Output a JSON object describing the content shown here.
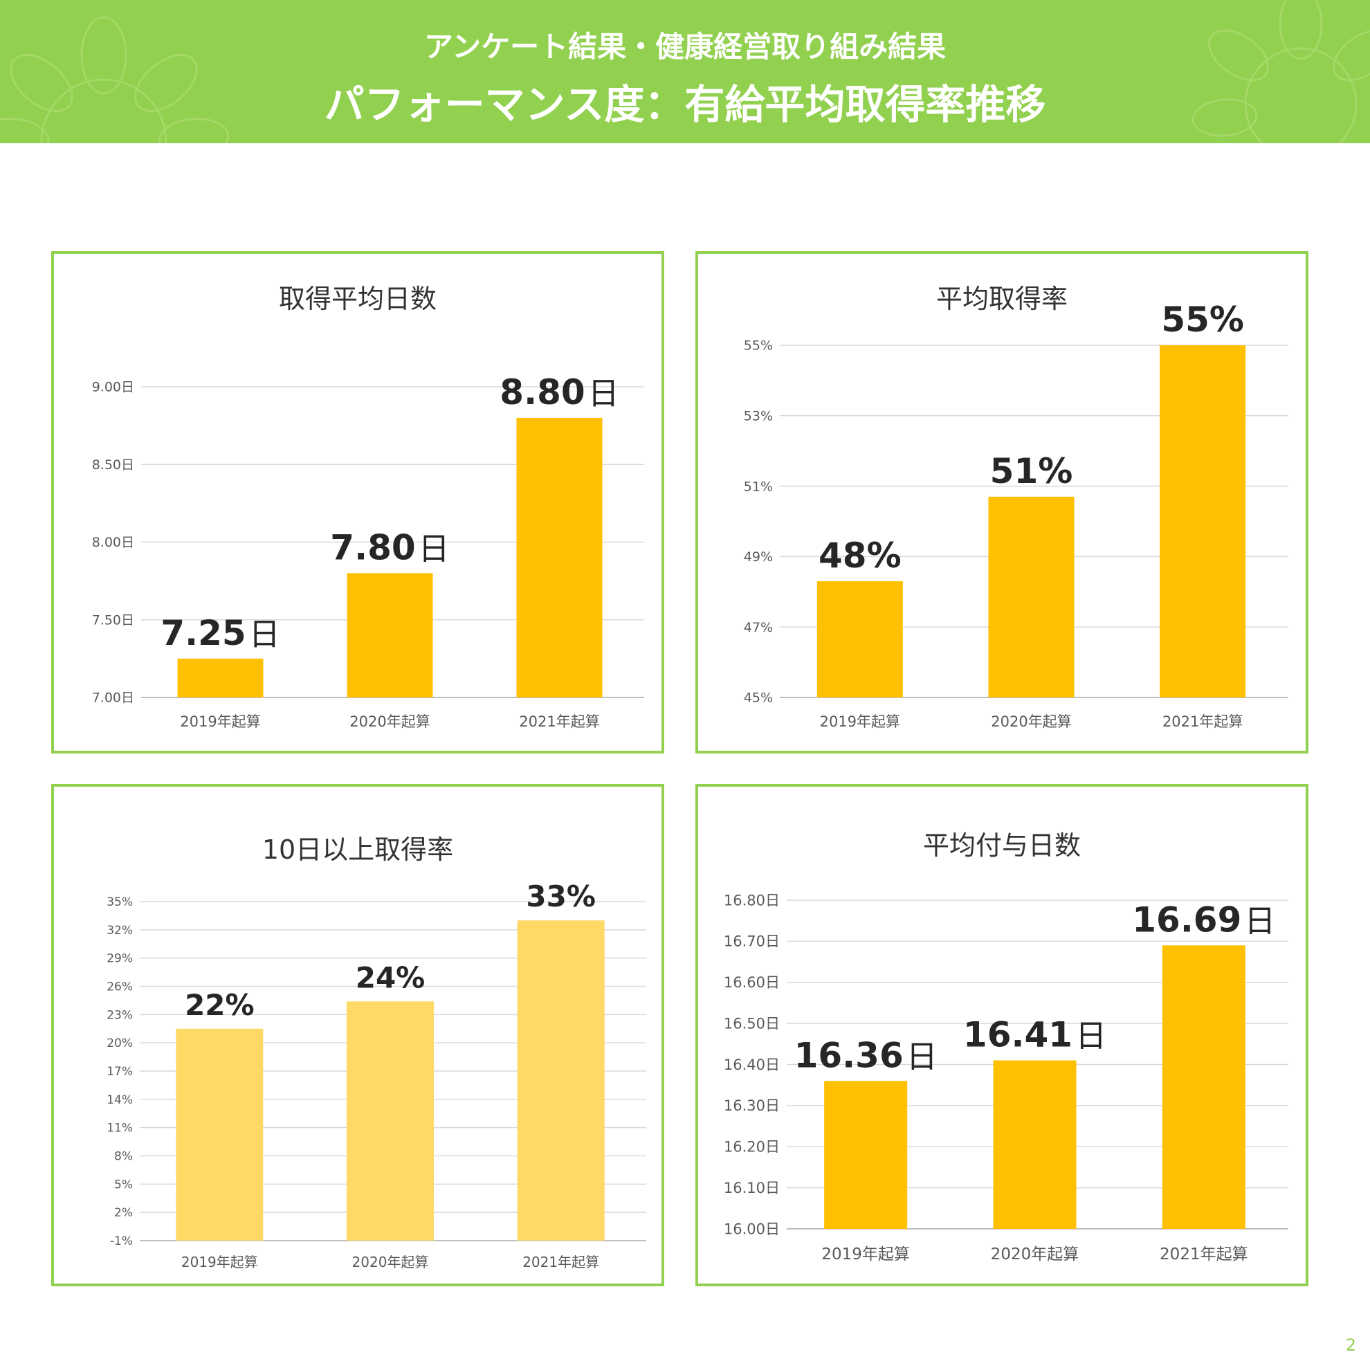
{
  "header": {
    "subtitle": "アンケート結果・健康経営取り組み結果",
    "title": "パフォーマンス度：有給平均取得率推移"
  },
  "page_number": "2",
  "colors": {
    "header_bg": "#92d050",
    "panel_border": "#92d050",
    "bar": "#ffc000",
    "bar_light": "#ffd966"
  },
  "chart_data": [
    {
      "id": "days",
      "type": "bar",
      "title": "取得平均日数",
      "categories": [
        "2019年起算",
        "2020年起算",
        "2021年起算"
      ],
      "values": [
        7.25,
        7.8,
        8.8
      ],
      "data_labels": [
        [
          "7.25",
          "日"
        ],
        [
          "7.80",
          "日"
        ],
        [
          "8.80",
          "日"
        ]
      ],
      "ylim": [
        7.0,
        9.0
      ],
      "yticks": [
        "7.00日",
        "7.50日",
        "8.00日",
        "8.50日",
        "9.00日"
      ],
      "ytick_values": [
        7.0,
        7.5,
        8.0,
        8.5,
        9.0
      ],
      "grid": true,
      "bar_color": "#ffc000"
    },
    {
      "id": "rate",
      "type": "bar",
      "title": "平均取得率",
      "categories": [
        "2019年起算",
        "2020年起算",
        "2021年起算"
      ],
      "values": [
        48.3,
        50.7,
        55.0
      ],
      "data_labels": [
        [
          "48%",
          ""
        ],
        [
          "51%",
          ""
        ],
        [
          "55%",
          ""
        ]
      ],
      "ylim": [
        45,
        55
      ],
      "yticks": [
        "45%",
        "47%",
        "49%",
        "51%",
        "53%",
        "55%"
      ],
      "ytick_values": [
        45,
        47,
        49,
        51,
        53,
        55
      ],
      "grid": true,
      "bar_color": "#ffc000"
    },
    {
      "id": "over10",
      "type": "bar",
      "title": "10日以上取得率",
      "categories": [
        "2019年起算",
        "2020年起算",
        "2021年起算"
      ],
      "values": [
        21.5,
        24.4,
        33.0
      ],
      "data_labels": [
        [
          "22%",
          ""
        ],
        [
          "24%",
          ""
        ],
        [
          "33%",
          ""
        ]
      ],
      "ylim": [
        -1,
        35
      ],
      "yticks": [
        "-1%",
        "2%",
        "5%",
        "8%",
        "11%",
        "14%",
        "17%",
        "20%",
        "23%",
        "26%",
        "29%",
        "32%",
        "35%"
      ],
      "ytick_values": [
        -1,
        2,
        5,
        8,
        11,
        14,
        17,
        20,
        23,
        26,
        29,
        32,
        35
      ],
      "grid": true,
      "bar_color": "#ffd966"
    },
    {
      "id": "granted",
      "type": "bar",
      "title": "平均付与日数",
      "categories": [
        "2019年起算",
        "2020年起算",
        "2021年起算"
      ],
      "values": [
        16.36,
        16.41,
        16.69
      ],
      "data_labels": [
        [
          "16.36",
          "日"
        ],
        [
          "16.41",
          "日"
        ],
        [
          "16.69",
          "日"
        ]
      ],
      "ylim": [
        16.0,
        16.8
      ],
      "yticks": [
        "16.00日",
        "16.10日",
        "16.20日",
        "16.30日",
        "16.40日",
        "16.50日",
        "16.60日",
        "16.70日",
        "16.80日"
      ],
      "ytick_values": [
        16.0,
        16.1,
        16.2,
        16.3,
        16.4,
        16.5,
        16.6,
        16.7,
        16.8
      ],
      "grid": true,
      "bar_color": "#ffc000"
    }
  ]
}
